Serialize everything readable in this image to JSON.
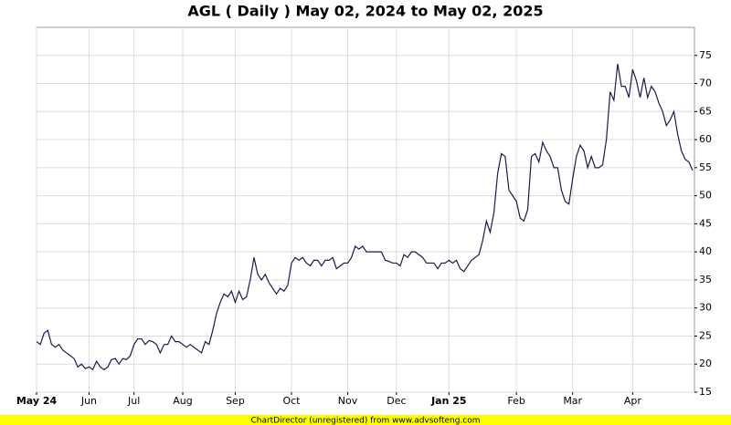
{
  "chart_data": {
    "type": "line",
    "title": "AGL ( Daily ) May 02, 2024 to May 02, 2025",
    "footer": "ChartDirector (unregistered) from www.advsofteng.com",
    "categories": [
      "May 24",
      null,
      null,
      null,
      null,
      null,
      null,
      null,
      null,
      null,
      null,
      null,
      null,
      null,
      "Jun",
      null,
      null,
      null,
      null,
      null,
      null,
      null,
      null,
      null,
      null,
      null,
      "Jul",
      null,
      null,
      null,
      null,
      null,
      null,
      null,
      null,
      null,
      null,
      null,
      null,
      "Aug",
      null,
      null,
      null,
      null,
      null,
      null,
      null,
      null,
      null,
      null,
      null,
      null,
      null,
      "Sep",
      null,
      null,
      null,
      null,
      null,
      null,
      null,
      null,
      null,
      null,
      null,
      null,
      null,
      null,
      "Oct",
      null,
      null,
      null,
      null,
      null,
      null,
      null,
      null,
      null,
      null,
      null,
      null,
      null,
      null,
      "Nov",
      null,
      null,
      null,
      null,
      null,
      null,
      null,
      null,
      null,
      null,
      null,
      null,
      "Dec",
      null,
      null,
      null,
      null,
      null,
      null,
      null,
      null,
      null,
      null,
      null,
      null,
      null,
      "Jan 25",
      null,
      null,
      null,
      null,
      null,
      null,
      null,
      null,
      null,
      null,
      null,
      null,
      null,
      null,
      null,
      null,
      null,
      "Feb",
      null,
      null,
      null,
      null,
      null,
      null,
      null,
      null,
      null,
      null,
      null,
      null,
      null,
      null,
      "Mar",
      null,
      null,
      null,
      null,
      null,
      null,
      null,
      null,
      null,
      null,
      null,
      null,
      null,
      null,
      null,
      "Apr",
      null,
      null,
      null,
      null,
      null,
      null,
      null,
      null,
      null,
      null,
      null,
      null,
      null,
      null,
      null,
      null
    ],
    "series": [
      {
        "color": "#1a1a4e",
        "values": [
          24,
          23.5,
          25.5,
          26,
          23.5,
          23,
          23.5,
          22.5,
          22,
          21.5,
          21,
          19.5,
          20,
          19.2,
          19.5,
          19,
          20.5,
          19.5,
          19,
          19.5,
          20.8,
          21,
          20,
          21,
          20.8,
          21.5,
          23.5,
          24.5,
          24.5,
          23.5,
          24.2,
          24,
          23.5,
          22,
          23.5,
          23.5,
          25,
          24,
          24,
          23.5,
          23,
          23.5,
          23,
          22.5,
          22,
          24,
          23.5,
          26,
          29,
          31,
          32.5,
          32,
          33,
          31,
          33,
          31.5,
          32,
          35,
          39,
          36,
          35,
          36,
          34.5,
          33.5,
          32.5,
          33.5,
          33,
          34,
          38,
          39,
          38.5,
          39,
          38,
          37.5,
          38.5,
          38.5,
          37.5,
          38.5,
          38.5,
          39,
          37,
          37.5,
          38,
          38,
          39,
          41,
          40.5,
          41,
          40,
          40,
          40,
          40,
          40,
          38.5,
          38.3,
          38,
          38,
          37.5,
          39.5,
          39,
          40,
          40,
          39.5,
          39,
          38,
          38,
          38,
          37,
          38,
          38,
          38.5,
          38,
          38.5,
          37,
          36.5,
          37.5,
          38.5,
          39,
          39.5,
          42,
          45.5,
          43.5,
          47,
          54,
          57.5,
          57,
          51,
          50,
          49,
          46,
          45.5,
          47.5,
          57,
          57.5,
          56,
          59.5,
          58,
          57,
          55,
          55,
          51,
          49,
          48.5,
          53,
          57,
          59,
          58,
          55,
          57,
          55,
          55,
          55.5,
          60,
          68.5,
          67,
          73.5,
          69.5,
          69.5,
          67.5,
          72.5,
          70.5,
          67.5,
          71,
          67.5,
          69.5,
          68.5,
          66.5,
          65,
          62.5,
          63.5,
          65,
          61,
          58,
          56.5,
          56,
          54.5
        ]
      }
    ],
    "ylim": [
      15,
      80
    ],
    "yticks": [
      15,
      20,
      25,
      30,
      35,
      40,
      45,
      50,
      55,
      60,
      65,
      70,
      75
    ],
    "grid": true
  }
}
